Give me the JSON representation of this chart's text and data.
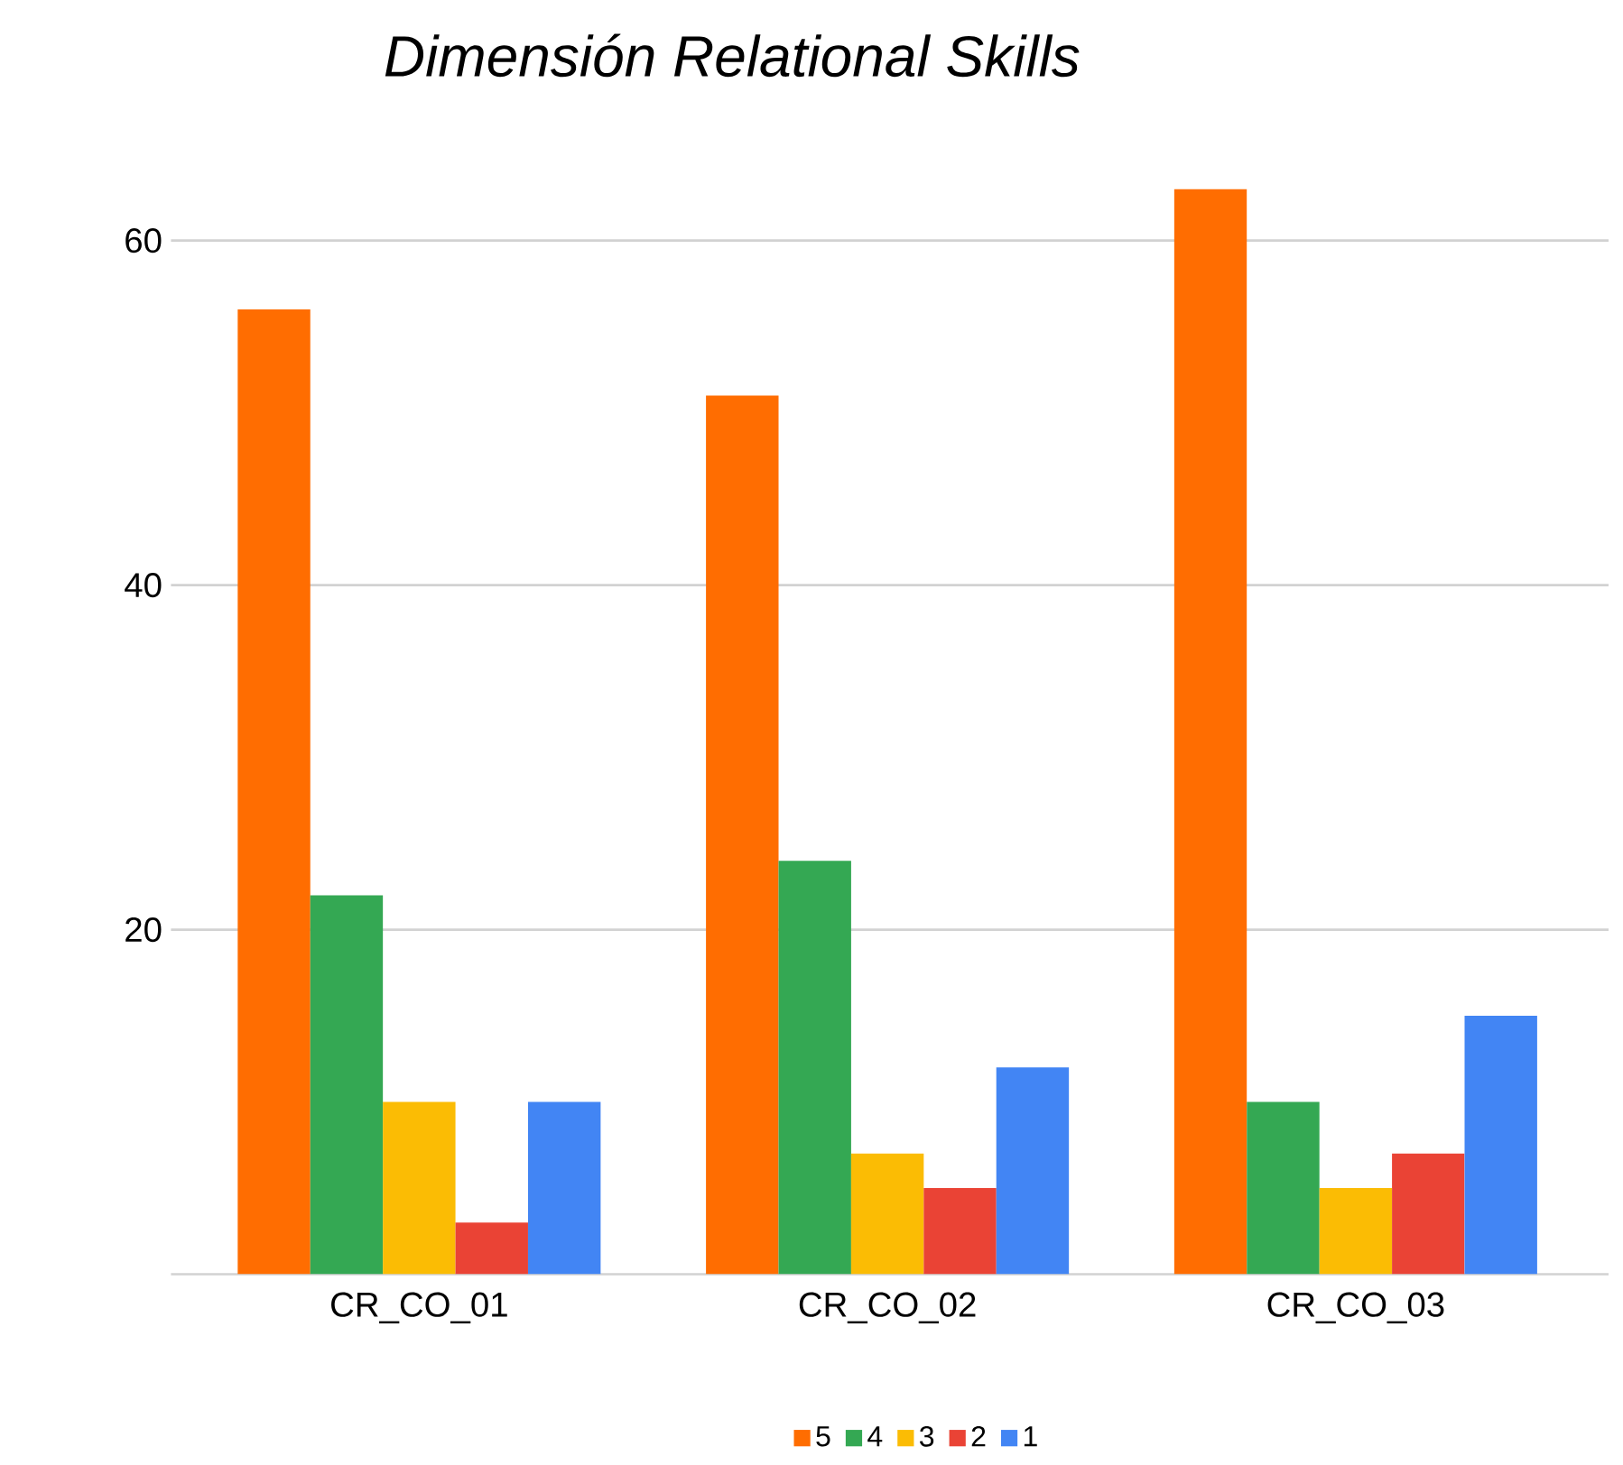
{
  "chart_data": {
    "type": "bar",
    "title": "Dimensión Relational Skills",
    "categories": [
      "CR_CO_01",
      "CR_CO_02",
      "CR_CO_03"
    ],
    "series": [
      {
        "name": "5",
        "color": "#ff6d01",
        "values": [
          56,
          51,
          63
        ]
      },
      {
        "name": "4",
        "color": "#34a853",
        "values": [
          22,
          24,
          10
        ]
      },
      {
        "name": "3",
        "color": "#fbbc04",
        "values": [
          10,
          7,
          5
        ]
      },
      {
        "name": "2",
        "color": "#ea4335",
        "values": [
          3,
          5,
          7
        ]
      },
      {
        "name": "1",
        "color": "#4285f4",
        "values": [
          10,
          12,
          15
        ]
      }
    ],
    "ylim": [
      0,
      63
    ],
    "yticks": [
      {
        "value": 0,
        "label": null
      },
      20,
      40,
      60
    ],
    "grid": "y",
    "legend": "bottom"
  }
}
